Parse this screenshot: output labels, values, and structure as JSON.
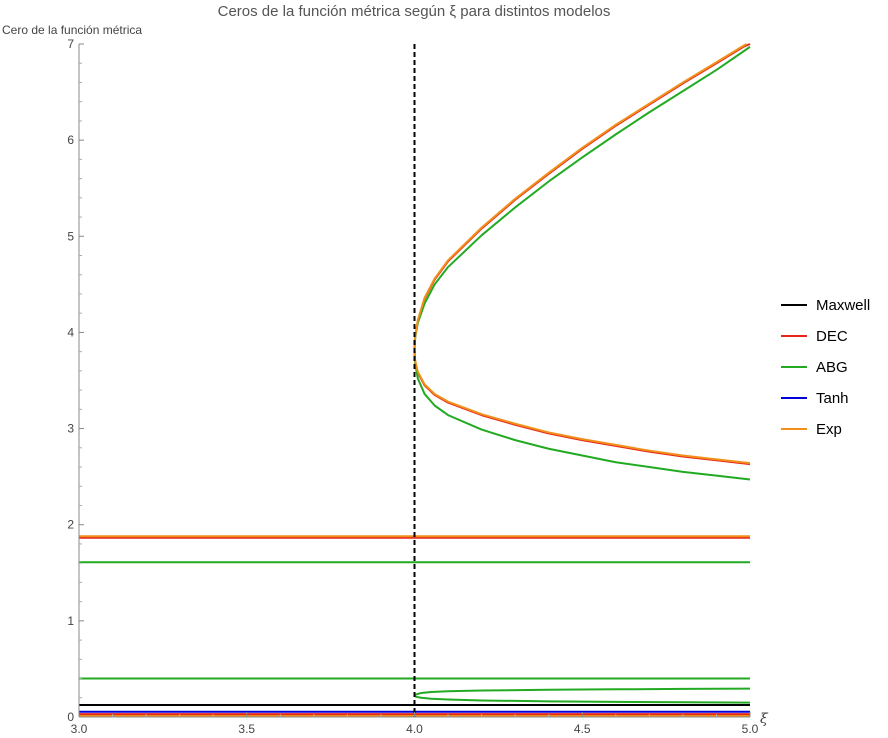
{
  "chart_data": {
    "type": "line",
    "title": "Ceros de la función métrica según ξ para distintos modelos",
    "xlabel": "ξ",
    "ylabel": "Cero de la función métrica",
    "xlim": [
      3.0,
      5.0
    ],
    "ylim": [
      0,
      7
    ],
    "x_ticks": [
      "3.0",
      "3.5",
      "4.0",
      "4.5",
      "5.0"
    ],
    "y_ticks": [
      "0",
      "1",
      "2",
      "3",
      "4",
      "5",
      "6",
      "7"
    ],
    "grid": false,
    "legend_position": "right",
    "vertical_line": {
      "x": 4.0,
      "style": "dashed",
      "color": "#000000"
    },
    "series": [
      {
        "name": "Maxwell",
        "color": "#000000",
        "segments": [
          [
            [
              3.0,
              0.125
            ],
            [
              5.0,
              0.125
            ]
          ]
        ]
      },
      {
        "name": "DEC",
        "color": "#e8251b",
        "segments": [
          [
            [
              3.0,
              1.865
            ],
            [
              5.0,
              1.865
            ]
          ],
          [
            [
              3.0,
              0.03
            ],
            [
              5.0,
              0.03
            ]
          ],
          [
            [
              4.0,
              3.82
            ],
            [
              4.002,
              3.95
            ],
            [
              4.01,
              4.12
            ],
            [
              4.03,
              4.35
            ],
            [
              4.06,
              4.55
            ],
            [
              4.1,
              4.74
            ],
            [
              4.2,
              5.08
            ],
            [
              4.3,
              5.38
            ],
            [
              4.4,
              5.65
            ],
            [
              4.5,
              5.91
            ],
            [
              4.6,
              6.15
            ],
            [
              4.7,
              6.37
            ],
            [
              4.8,
              6.59
            ],
            [
              4.9,
              6.8
            ],
            [
              4.98,
              6.97
            ],
            [
              5.0,
              7.0
            ]
          ],
          [
            [
              4.0,
              3.82
            ],
            [
              4.002,
              3.7
            ],
            [
              4.01,
              3.58
            ],
            [
              4.03,
              3.45
            ],
            [
              4.06,
              3.35
            ],
            [
              4.1,
              3.27
            ],
            [
              4.2,
              3.14
            ],
            [
              4.3,
              3.04
            ],
            [
              4.4,
              2.95
            ],
            [
              4.5,
              2.88
            ],
            [
              4.6,
              2.82
            ],
            [
              4.7,
              2.76
            ],
            [
              4.8,
              2.71
            ],
            [
              4.9,
              2.67
            ],
            [
              5.0,
              2.63
            ]
          ]
        ]
      },
      {
        "name": "ABG",
        "color": "#22aa22",
        "segments": [
          [
            [
              3.0,
              1.61
            ],
            [
              5.0,
              1.61
            ]
          ],
          [
            [
              3.0,
              0.4
            ],
            [
              5.0,
              0.4
            ]
          ],
          [
            [
              4.0,
              3.82
            ],
            [
              4.002,
              3.95
            ],
            [
              4.01,
              4.1
            ],
            [
              4.03,
              4.3
            ],
            [
              4.06,
              4.5
            ],
            [
              4.1,
              4.68
            ],
            [
              4.2,
              5.01
            ],
            [
              4.3,
              5.3
            ],
            [
              4.4,
              5.57
            ],
            [
              4.5,
              5.82
            ],
            [
              4.6,
              6.06
            ],
            [
              4.7,
              6.29
            ],
            [
              4.8,
              6.51
            ],
            [
              4.9,
              6.73
            ],
            [
              5.0,
              6.97
            ]
          ],
          [
            [
              4.0,
              3.82
            ],
            [
              4.002,
              3.68
            ],
            [
              4.01,
              3.52
            ],
            [
              4.03,
              3.36
            ],
            [
              4.06,
              3.24
            ],
            [
              4.1,
              3.14
            ],
            [
              4.2,
              2.99
            ],
            [
              4.3,
              2.88
            ],
            [
              4.4,
              2.79
            ],
            [
              4.5,
              2.72
            ],
            [
              4.6,
              2.65
            ],
            [
              4.7,
              2.6
            ],
            [
              4.8,
              2.55
            ],
            [
              4.9,
              2.51
            ],
            [
              5.0,
              2.47
            ]
          ],
          [
            [
              4.0,
              0.23
            ],
            [
              4.005,
              0.235
            ],
            [
              4.02,
              0.25
            ],
            [
              4.05,
              0.26
            ],
            [
              4.1,
              0.268
            ],
            [
              4.2,
              0.275
            ],
            [
              4.4,
              0.283
            ],
            [
              4.6,
              0.288
            ],
            [
              4.8,
              0.292
            ],
            [
              5.0,
              0.295
            ]
          ],
          [
            [
              4.0,
              0.22
            ],
            [
              4.005,
              0.21
            ],
            [
              4.02,
              0.2
            ],
            [
              4.05,
              0.19
            ],
            [
              4.1,
              0.182
            ],
            [
              4.2,
              0.172
            ],
            [
              4.4,
              0.163
            ],
            [
              4.6,
              0.157
            ],
            [
              4.8,
              0.153
            ],
            [
              5.0,
              0.15
            ]
          ]
        ]
      },
      {
        "name": "Tanh",
        "color": "#0000dd",
        "segments": [
          [
            [
              3.0,
              0.055
            ],
            [
              5.0,
              0.055
            ]
          ]
        ]
      },
      {
        "name": "Exp",
        "color": "#f0901a",
        "segments": [
          [
            [
              3.0,
              1.88
            ],
            [
              5.0,
              1.88
            ]
          ],
          [
            [
              3.0,
              0.01
            ],
            [
              5.0,
              0.01
            ]
          ],
          [
            [
              4.0,
              3.82
            ],
            [
              4.002,
              3.96
            ],
            [
              4.01,
              4.13
            ],
            [
              4.03,
              4.36
            ],
            [
              4.06,
              4.56
            ],
            [
              4.1,
              4.75
            ],
            [
              4.2,
              5.09
            ],
            [
              4.3,
              5.39
            ],
            [
              4.4,
              5.66
            ],
            [
              4.5,
              5.92
            ],
            [
              4.6,
              6.16
            ],
            [
              4.7,
              6.38
            ],
            [
              4.8,
              6.6
            ],
            [
              4.9,
              6.81
            ],
            [
              4.975,
              6.97
            ],
            [
              4.99,
              7.0
            ]
          ],
          [
            [
              4.0,
              3.82
            ],
            [
              4.002,
              3.7
            ],
            [
              4.01,
              3.59
            ],
            [
              4.03,
              3.46
            ],
            [
              4.06,
              3.36
            ],
            [
              4.1,
              3.28
            ],
            [
              4.2,
              3.15
            ],
            [
              4.3,
              3.05
            ],
            [
              4.4,
              2.96
            ],
            [
              4.5,
              2.89
            ],
            [
              4.6,
              2.83
            ],
            [
              4.7,
              2.77
            ],
            [
              4.8,
              2.72
            ],
            [
              4.9,
              2.68
            ],
            [
              5.0,
              2.64
            ]
          ]
        ]
      }
    ]
  }
}
